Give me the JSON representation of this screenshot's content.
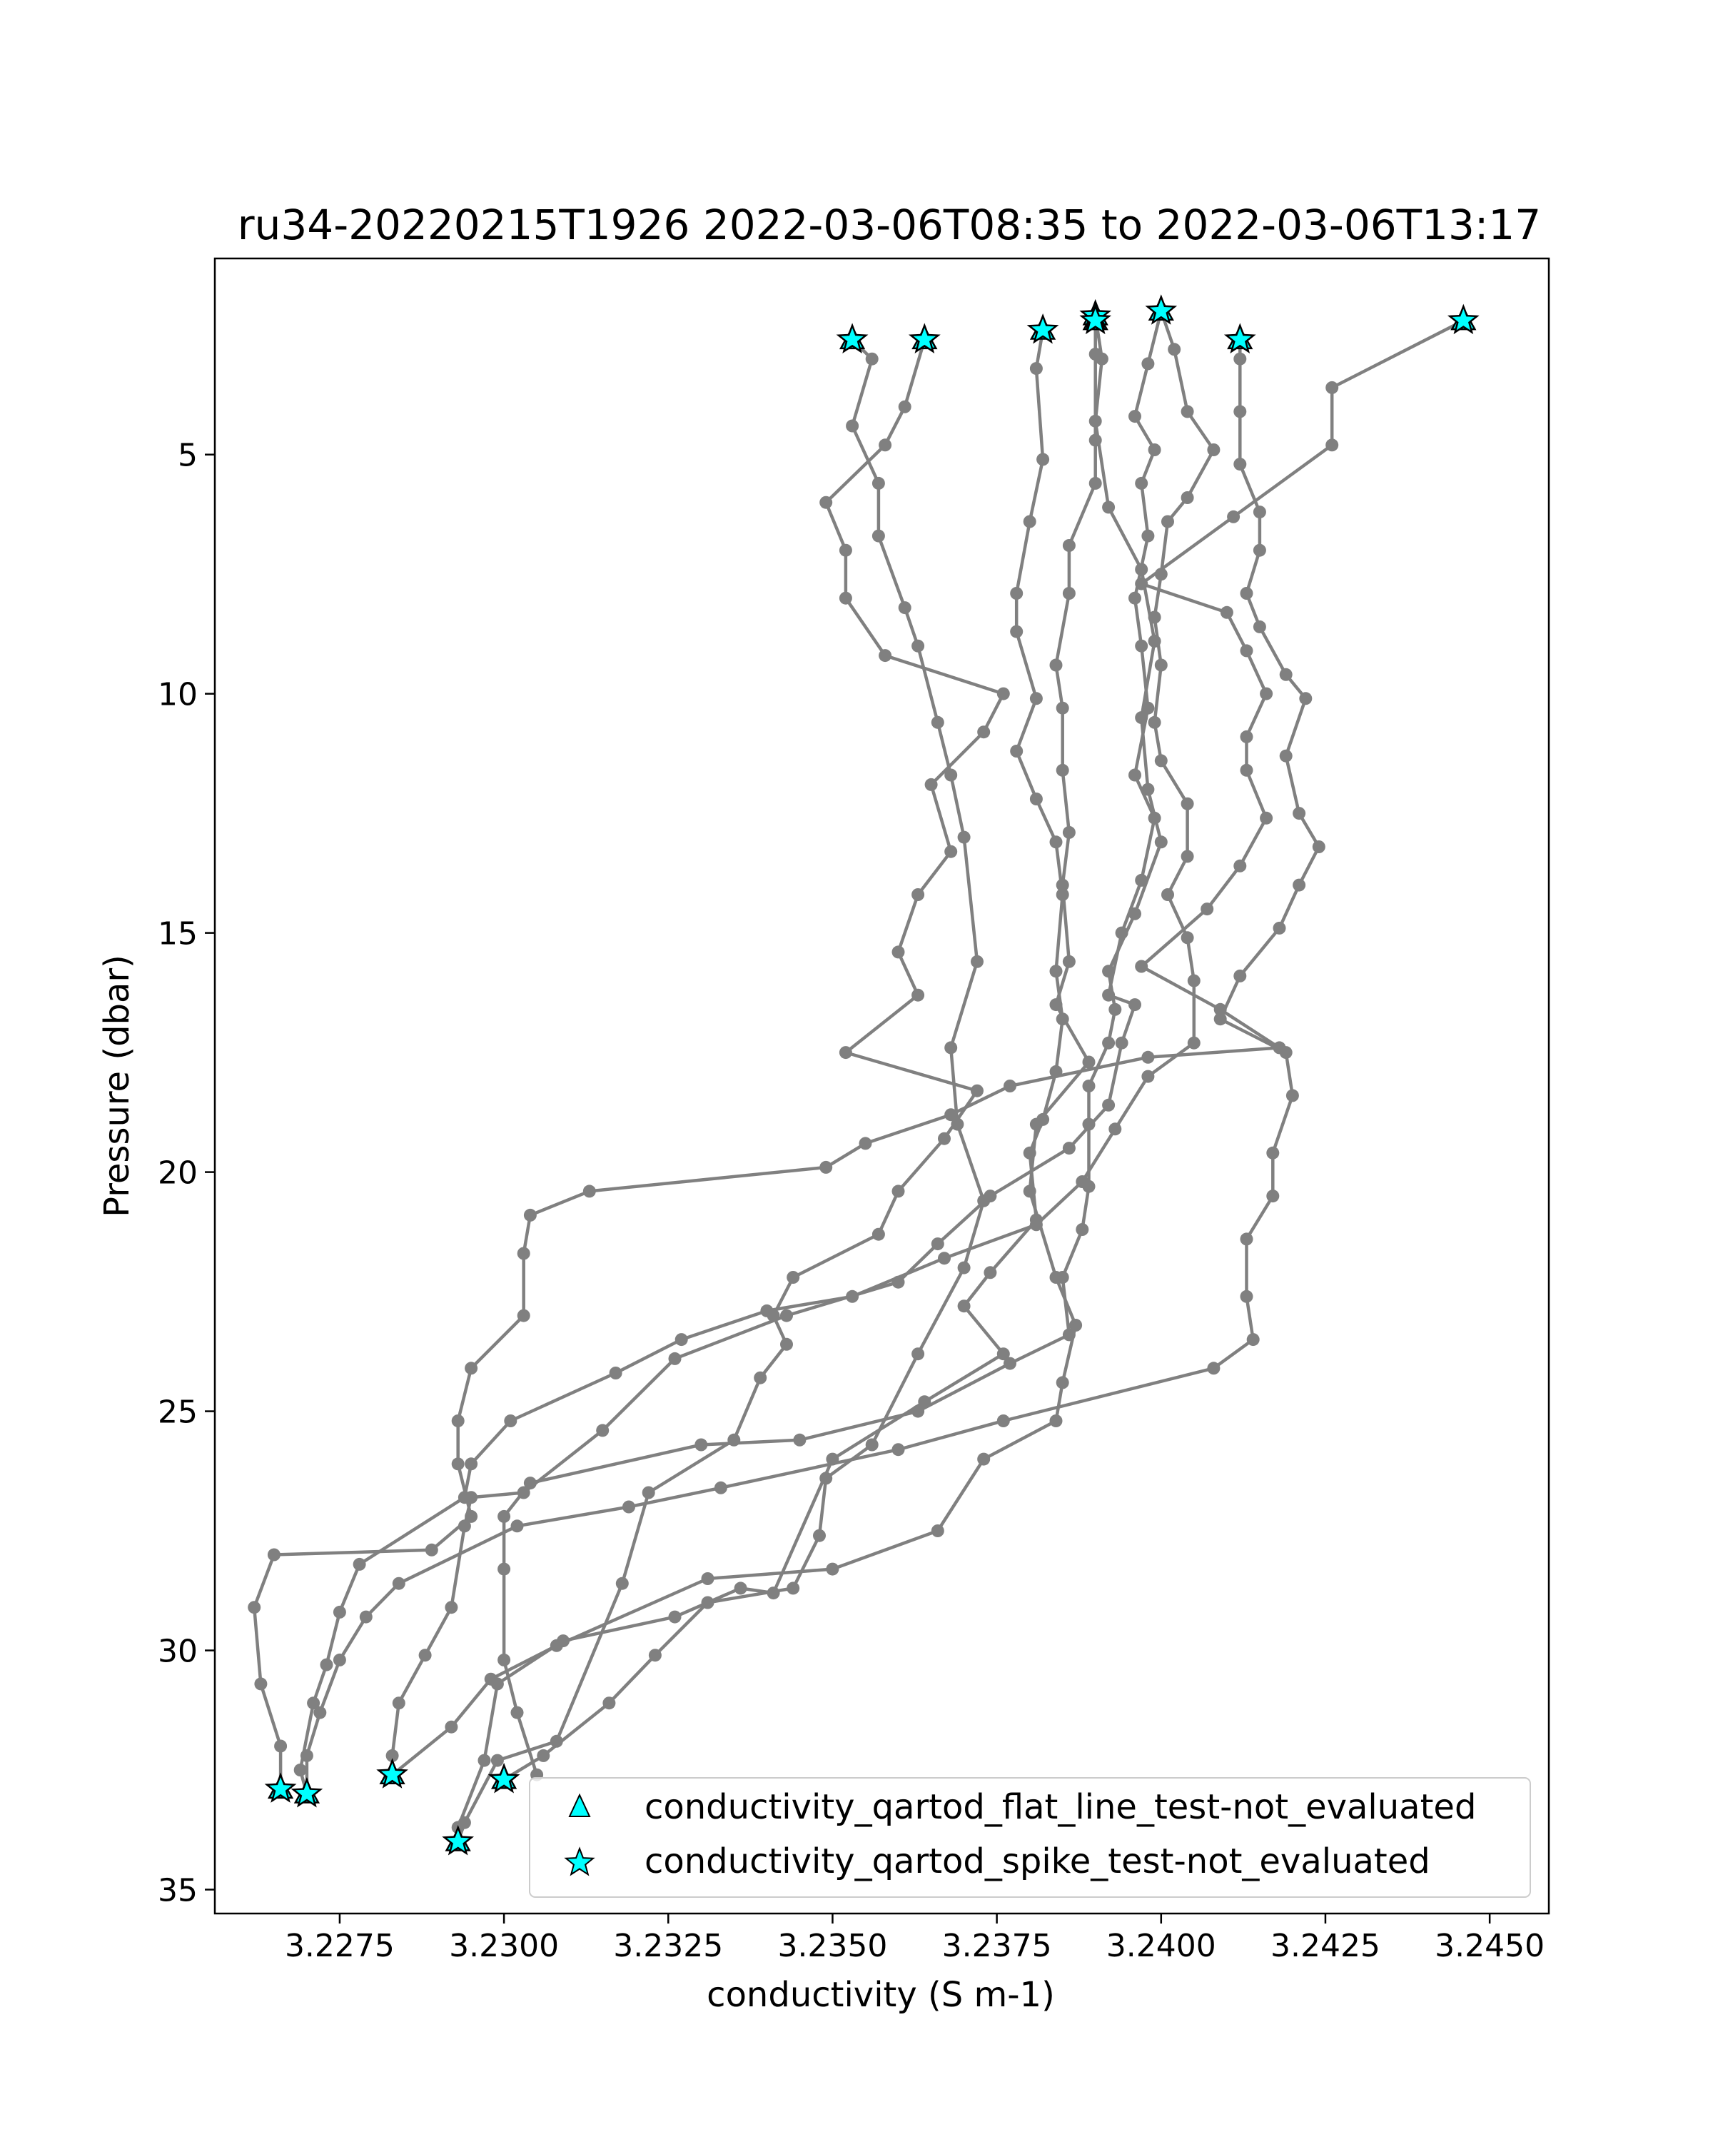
{
  "chart_data": {
    "type": "scatter",
    "title": "ru34-20220215T1926 2022-03-06T08:35 to 2022-03-06T13:17",
    "xlabel": "conductivity (S m-1)",
    "ylabel": "Pressure (dbar)",
    "xlim": [
      3.2256,
      3.2459
    ],
    "ylim": [
      35.5,
      0.9
    ],
    "y_inverted": true,
    "grid": false,
    "xticks": [
      3.2275,
      3.23,
      3.2325,
      3.235,
      3.2375,
      3.24,
      3.2425,
      3.245
    ],
    "xtick_labels": [
      "3.2275",
      "3.2300",
      "3.2325",
      "3.2350",
      "3.2375",
      "3.2400",
      "3.2425",
      "3.2450"
    ],
    "yticks": [
      5,
      10,
      15,
      20,
      25,
      30,
      35
    ],
    "ytick_labels": [
      "5",
      "10",
      "15",
      "20",
      "25",
      "30",
      "35"
    ],
    "colors": {
      "profile": "#808080",
      "marker": "#00ffff",
      "marker_edge": "#000000"
    },
    "legend": {
      "placement": "lower right",
      "entries": [
        {
          "label": "conductivity_qartod_flat_line_test-not_evaluated",
          "marker": "triangle"
        },
        {
          "label": "conductivity_qartod_spike_test-not_evaluated",
          "marker": "star"
        }
      ]
    },
    "profiles": [
      [
        [
          3.2353,
          2.6
        ],
        [
          3.2356,
          3.0
        ],
        [
          3.2353,
          4.4
        ],
        [
          3.2357,
          5.6
        ],
        [
          3.2357,
          6.7
        ],
        [
          3.2361,
          8.2
        ],
        [
          3.2363,
          9.0
        ],
        [
          3.2366,
          10.6
        ],
        [
          3.2368,
          11.7
        ],
        [
          3.237,
          13.0
        ],
        [
          3.2372,
          15.6
        ],
        [
          3.2368,
          17.4
        ],
        [
          3.2369,
          19.0
        ],
        [
          3.2373,
          20.6
        ],
        [
          3.237,
          22.0
        ],
        [
          3.2363,
          23.8
        ],
        [
          3.2356,
          25.7
        ],
        [
          3.2349,
          26.4
        ],
        [
          3.2348,
          27.6
        ],
        [
          3.2344,
          28.7
        ],
        [
          3.2331,
          29.0
        ],
        [
          3.2323,
          30.1
        ],
        [
          3.2316,
          31.1
        ],
        [
          3.2306,
          32.2
        ],
        [
          3.23,
          32.7
        ]
      ],
      [
        [
          3.2364,
          2.6
        ],
        [
          3.2361,
          4.0
        ],
        [
          3.2358,
          4.8
        ],
        [
          3.2349,
          6.0
        ],
        [
          3.2352,
          7.0
        ],
        [
          3.2352,
          8.0
        ],
        [
          3.2358,
          9.2
        ],
        [
          3.2376,
          10.0
        ],
        [
          3.2373,
          10.8
        ],
        [
          3.2365,
          11.9
        ],
        [
          3.2368,
          13.3
        ],
        [
          3.2363,
          14.2
        ],
        [
          3.236,
          15.4
        ],
        [
          3.2363,
          16.3
        ],
        [
          3.2352,
          17.5
        ],
        [
          3.2372,
          18.3
        ],
        [
          3.2367,
          19.3
        ],
        [
          3.236,
          20.4
        ],
        [
          3.2357,
          21.3
        ],
        [
          3.2344,
          22.2
        ],
        [
          3.2341,
          23.0
        ],
        [
          3.2343,
          23.6
        ],
        [
          3.2339,
          24.3
        ],
        [
          3.2335,
          25.6
        ],
        [
          3.2322,
          26.7
        ],
        [
          3.2318,
          28.6
        ],
        [
          3.2308,
          31.9
        ],
        [
          3.2299,
          32.3
        ],
        [
          3.2294,
          33.6
        ],
        [
          3.2293,
          34.0
        ]
      ],
      [
        [
          3.2382,
          2.4
        ],
        [
          3.2381,
          3.2
        ],
        [
          3.2382,
          5.1
        ],
        [
          3.238,
          6.4
        ],
        [
          3.2378,
          7.9
        ],
        [
          3.2378,
          8.7
        ],
        [
          3.2381,
          10.1
        ],
        [
          3.2378,
          11.2
        ],
        [
          3.2381,
          12.2
        ],
        [
          3.2384,
          13.1
        ],
        [
          3.2385,
          14.2
        ],
        [
          3.2384,
          15.8
        ],
        [
          3.2385,
          16.8
        ],
        [
          3.2384,
          17.9
        ],
        [
          3.2382,
          18.9
        ],
        [
          3.238,
          19.6
        ],
        [
          3.2381,
          21.0
        ],
        [
          3.2374,
          22.1
        ],
        [
          3.237,
          22.8
        ],
        [
          3.2376,
          23.8
        ],
        [
          3.2364,
          24.8
        ],
        [
          3.235,
          26.0
        ],
        [
          3.2341,
          28.8
        ],
        [
          3.2336,
          28.7
        ],
        [
          3.2326,
          29.3
        ],
        [
          3.2309,
          29.8
        ],
        [
          3.2299,
          30.7
        ],
        [
          3.2297,
          32.3
        ],
        [
          3.2293,
          33.7
        ],
        [
          3.2293,
          34.0
        ]
      ],
      [
        [
          3.239,
          2.1
        ],
        [
          3.239,
          2.9
        ],
        [
          3.239,
          4.7
        ],
        [
          3.239,
          5.6
        ],
        [
          3.2386,
          6.9
        ],
        [
          3.2386,
          7.9
        ],
        [
          3.2384,
          9.4
        ],
        [
          3.2385,
          10.3
        ],
        [
          3.2385,
          11.6
        ],
        [
          3.2386,
          12.9
        ],
        [
          3.2385,
          14.0
        ],
        [
          3.2386,
          15.6
        ],
        [
          3.2384,
          16.5
        ],
        [
          3.2389,
          17.7
        ],
        [
          3.2381,
          19.0
        ],
        [
          3.238,
          20.4
        ],
        [
          3.2384,
          22.2
        ],
        [
          3.2387,
          23.2
        ],
        [
          3.2385,
          24.4
        ],
        [
          3.2384,
          25.2
        ],
        [
          3.2373,
          26.0
        ],
        [
          3.2366,
          27.5
        ],
        [
          3.235,
          28.3
        ],
        [
          3.2331,
          28.5
        ],
        [
          3.2308,
          29.9
        ],
        [
          3.2298,
          30.6
        ],
        [
          3.2292,
          31.6
        ],
        [
          3.2283,
          32.6
        ]
      ],
      [
        [
          3.239,
          2.1
        ],
        [
          3.2391,
          3.0
        ],
        [
          3.239,
          4.3
        ],
        [
          3.2392,
          6.1
        ],
        [
          3.2397,
          7.4
        ],
        [
          3.2399,
          8.9
        ],
        [
          3.2397,
          10.5
        ],
        [
          3.2398,
          12.0
        ],
        [
          3.24,
          13.1
        ],
        [
          3.2396,
          14.6
        ],
        [
          3.2392,
          15.8
        ],
        [
          3.2393,
          16.6
        ],
        [
          3.2392,
          17.3
        ],
        [
          3.2389,
          18.2
        ],
        [
          3.2389,
          19.0
        ],
        [
          3.2389,
          20.3
        ],
        [
          3.2388,
          21.2
        ],
        [
          3.2385,
          22.2
        ],
        [
          3.2386,
          23.4
        ],
        [
          3.2377,
          24.0
        ],
        [
          3.2363,
          25.0
        ],
        [
          3.2345,
          25.6
        ],
        [
          3.233,
          25.7
        ],
        [
          3.2304,
          26.5
        ],
        [
          3.23,
          27.2
        ],
        [
          3.23,
          28.3
        ],
        [
          3.23,
          30.2
        ],
        [
          3.2302,
          31.3
        ],
        [
          3.2305,
          32.6
        ]
      ],
      [
        [
          3.24,
          2.0
        ],
        [
          3.2398,
          3.1
        ],
        [
          3.2396,
          4.2
        ],
        [
          3.2399,
          4.9
        ],
        [
          3.2397,
          5.6
        ],
        [
          3.2398,
          6.7
        ],
        [
          3.2396,
          8.0
        ],
        [
          3.2397,
          9.0
        ],
        [
          3.2398,
          10.3
        ],
        [
          3.2396,
          11.7
        ],
        [
          3.2399,
          12.6
        ],
        [
          3.2397,
          13.9
        ],
        [
          3.2394,
          15.0
        ],
        [
          3.2392,
          16.3
        ],
        [
          3.2396,
          16.5
        ],
        [
          3.2394,
          17.3
        ],
        [
          3.2392,
          18.6
        ],
        [
          3.2386,
          19.5
        ],
        [
          3.2374,
          20.5
        ],
        [
          3.2366,
          21.5
        ],
        [
          3.236,
          22.3
        ],
        [
          3.2343,
          23.0
        ],
        [
          3.2326,
          23.9
        ],
        [
          3.2315,
          25.4
        ],
        [
          3.2303,
          26.7
        ],
        [
          3.2295,
          26.8
        ],
        [
          3.2294,
          27.4
        ],
        [
          3.2292,
          29.1
        ],
        [
          3.2288,
          30.1
        ],
        [
          3.2284,
          31.1
        ],
        [
          3.2283,
          32.2
        ],
        [
          3.2283,
          32.6
        ]
      ],
      [
        [
          3.24,
          2.0
        ],
        [
          3.2402,
          2.8
        ],
        [
          3.2404,
          4.1
        ],
        [
          3.2408,
          4.9
        ],
        [
          3.2404,
          5.9
        ],
        [
          3.2401,
          6.4
        ],
        [
          3.24,
          7.5
        ],
        [
          3.2399,
          8.4
        ],
        [
          3.24,
          9.4
        ],
        [
          3.2399,
          10.6
        ],
        [
          3.24,
          11.4
        ],
        [
          3.2404,
          12.3
        ],
        [
          3.2404,
          13.4
        ],
        [
          3.2401,
          14.2
        ],
        [
          3.2404,
          15.1
        ],
        [
          3.2405,
          16.0
        ],
        [
          3.2405,
          17.3
        ],
        [
          3.2398,
          18.0
        ],
        [
          3.2393,
          19.1
        ],
        [
          3.2388,
          20.2
        ],
        [
          3.2381,
          21.1
        ],
        [
          3.2367,
          21.8
        ],
        [
          3.2353,
          22.6
        ],
        [
          3.234,
          22.9
        ],
        [
          3.2327,
          23.5
        ],
        [
          3.2317,
          24.2
        ],
        [
          3.2301,
          25.2
        ],
        [
          3.2295,
          26.1
        ],
        [
          3.2294,
          26.8
        ],
        [
          3.2278,
          28.2
        ],
        [
          3.2275,
          29.2
        ],
        [
          3.2273,
          30.3
        ],
        [
          3.2271,
          31.1
        ],
        [
          3.2269,
          32.5
        ],
        [
          3.227,
          33.0
        ]
      ],
      [
        [
          3.2412,
          2.6
        ],
        [
          3.2412,
          3.0
        ],
        [
          3.2412,
          4.1
        ],
        [
          3.2412,
          5.2
        ],
        [
          3.2415,
          6.2
        ],
        [
          3.2415,
          7.0
        ],
        [
          3.2413,
          7.9
        ],
        [
          3.2415,
          8.6
        ],
        [
          3.2419,
          9.6
        ],
        [
          3.2422,
          10.1
        ],
        [
          3.2419,
          11.3
        ],
        [
          3.2421,
          12.5
        ],
        [
          3.2424,
          13.2
        ],
        [
          3.2421,
          14.0
        ],
        [
          3.2418,
          14.9
        ],
        [
          3.2412,
          15.9
        ],
        [
          3.2409,
          16.8
        ],
        [
          3.2419,
          17.5
        ],
        [
          3.242,
          18.4
        ],
        [
          3.2417,
          19.6
        ],
        [
          3.2417,
          20.5
        ],
        [
          3.2413,
          21.4
        ],
        [
          3.2413,
          22.6
        ],
        [
          3.2414,
          23.5
        ],
        [
          3.2408,
          24.1
        ],
        [
          3.2376,
          25.2
        ],
        [
          3.236,
          25.8
        ],
        [
          3.2333,
          26.6
        ],
        [
          3.2319,
          27.0
        ],
        [
          3.2302,
          27.4
        ],
        [
          3.2284,
          28.6
        ],
        [
          3.2279,
          29.3
        ],
        [
          3.2275,
          30.2
        ],
        [
          3.2272,
          31.3
        ],
        [
          3.227,
          32.2
        ],
        [
          3.227,
          33.0
        ]
      ],
      [
        [
          3.2446,
          2.2
        ],
        [
          3.2426,
          3.6
        ],
        [
          3.2426,
          4.8
        ],
        [
          3.2411,
          6.3
        ],
        [
          3.2397,
          7.7
        ],
        [
          3.241,
          8.3
        ],
        [
          3.2413,
          9.1
        ],
        [
          3.2416,
          10.0
        ],
        [
          3.2413,
          10.9
        ],
        [
          3.2413,
          11.6
        ],
        [
          3.2416,
          12.6
        ],
        [
          3.2412,
          13.6
        ],
        [
          3.2407,
          14.5
        ],
        [
          3.2397,
          15.7
        ],
        [
          3.2409,
          16.6
        ],
        [
          3.2418,
          17.4
        ],
        [
          3.2398,
          17.6
        ],
        [
          3.2377,
          18.2
        ],
        [
          3.2368,
          18.8
        ],
        [
          3.2355,
          19.4
        ],
        [
          3.2349,
          19.9
        ],
        [
          3.2313,
          20.4
        ],
        [
          3.2304,
          20.9
        ],
        [
          3.2303,
          21.7
        ],
        [
          3.2303,
          23.0
        ],
        [
          3.2295,
          24.1
        ],
        [
          3.2293,
          25.2
        ],
        [
          3.2293,
          26.1
        ],
        [
          3.2295,
          27.2
        ],
        [
          3.2289,
          27.9
        ],
        [
          3.2265,
          28.0
        ],
        [
          3.2262,
          29.1
        ],
        [
          3.2263,
          30.7
        ],
        [
          3.2266,
          32.0
        ],
        [
          3.2266,
          32.9
        ]
      ]
    ],
    "flat_line_not_evaluated": [
      [
        3.2353,
        2.6
      ],
      [
        3.2364,
        2.6
      ],
      [
        3.2382,
        2.4
      ],
      [
        3.239,
        2.1
      ],
      [
        3.239,
        2.2
      ],
      [
        3.24,
        2.0
      ],
      [
        3.2412,
        2.6
      ],
      [
        3.2446,
        2.2
      ],
      [
        3.2266,
        32.9
      ],
      [
        3.227,
        33.0
      ],
      [
        3.2283,
        32.6
      ],
      [
        3.23,
        32.7
      ],
      [
        3.2293,
        34.0
      ]
    ],
    "spike_test_not_evaluated": [
      [
        3.2353,
        2.6
      ],
      [
        3.2364,
        2.6
      ],
      [
        3.2382,
        2.4
      ],
      [
        3.239,
        2.1
      ],
      [
        3.239,
        2.2
      ],
      [
        3.24,
        2.0
      ],
      [
        3.2412,
        2.6
      ],
      [
        3.2446,
        2.2
      ],
      [
        3.2266,
        32.9
      ],
      [
        3.227,
        33.0
      ],
      [
        3.2283,
        32.6
      ],
      [
        3.23,
        32.7
      ],
      [
        3.2293,
        34.0
      ]
    ]
  }
}
